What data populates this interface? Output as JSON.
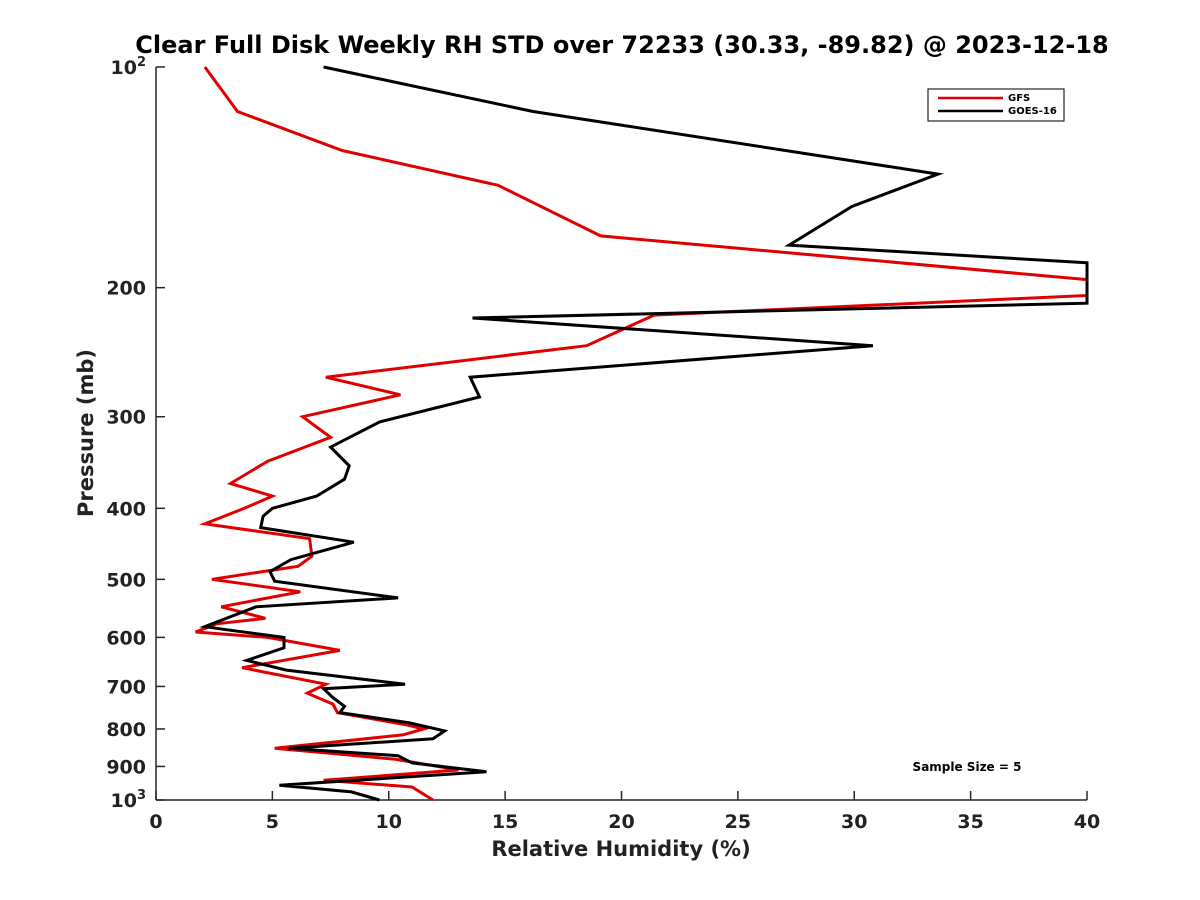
{
  "chart_data": {
    "type": "line",
    "title": "Clear Full Disk Weekly RH STD over 72233 (30.33, -89.82) @ 2023-12-18",
    "xlabel": "Relative Humidity (%)",
    "ylabel": "Pressure (mb)",
    "xlim": [
      0,
      40
    ],
    "ylim": [
      100,
      1000
    ],
    "yscale": "log",
    "y_reversed": true,
    "grid": false,
    "legend_position": "top-right",
    "x_ticks": [
      "0",
      "5",
      "10",
      "15",
      "20",
      "25",
      "30",
      "35",
      "40"
    ],
    "x_tick_values": [
      0,
      5,
      10,
      15,
      20,
      25,
      30,
      35,
      40
    ],
    "y_ticks": [
      {
        "value": 100,
        "base": "10",
        "exp": "2"
      },
      {
        "value": 200,
        "label": "200"
      },
      {
        "value": 300,
        "label": "300"
      },
      {
        "value": 400,
        "label": "400"
      },
      {
        "value": 500,
        "label": "500"
      },
      {
        "value": 600,
        "label": "600"
      },
      {
        "value": 700,
        "label": "700"
      },
      {
        "value": 800,
        "label": "800"
      },
      {
        "value": 900,
        "label": "900"
      },
      {
        "value": 1000,
        "base": "10",
        "exp": "3"
      }
    ],
    "annotation": "Sample Size = 5",
    "series": [
      {
        "name": "GFS",
        "color": "#e00000",
        "points": [
          [
            2.1,
            100
          ],
          [
            3.5,
            115
          ],
          [
            8.0,
            130
          ],
          [
            14.7,
            145
          ],
          [
            19.1,
            170
          ],
          [
            40,
            195
          ],
          [
            40,
            205
          ],
          [
            21.4,
            218
          ],
          [
            18.5,
            240
          ],
          [
            7.3,
            265
          ],
          [
            10.5,
            280
          ],
          [
            6.3,
            300
          ],
          [
            7.5,
            320
          ],
          [
            4.8,
            345
          ],
          [
            3.2,
            370
          ],
          [
            5.0,
            385
          ],
          [
            3.8,
            400
          ],
          [
            2.1,
            420
          ],
          [
            6.6,
            440
          ],
          [
            6.7,
            465
          ],
          [
            6.1,
            480
          ],
          [
            2.4,
            500
          ],
          [
            6.2,
            520
          ],
          [
            2.8,
            545
          ],
          [
            4.7,
            565
          ],
          [
            2.6,
            575
          ],
          [
            1.7,
            590
          ],
          [
            4.8,
            600
          ],
          [
            7.9,
            625
          ],
          [
            3.7,
            660
          ],
          [
            7.3,
            695
          ],
          [
            6.5,
            715
          ],
          [
            7.6,
            740
          ],
          [
            7.8,
            760
          ],
          [
            10.8,
            790
          ],
          [
            11.5,
            800
          ],
          [
            10.6,
            815
          ],
          [
            5.1,
            850
          ],
          [
            10.3,
            880
          ],
          [
            13.0,
            910
          ],
          [
            7.2,
            940
          ],
          [
            11.0,
            960
          ],
          [
            11.9,
            1000
          ]
        ]
      },
      {
        "name": "GOES-16",
        "color": "#000000",
        "points": [
          [
            7.2,
            100
          ],
          [
            16.2,
            115
          ],
          [
            33.6,
            140
          ],
          [
            29.9,
            155
          ],
          [
            27.2,
            175
          ],
          [
            40,
            185
          ],
          [
            40,
            210
          ],
          [
            13.6,
            220
          ],
          [
            30.8,
            240
          ],
          [
            13.5,
            265
          ],
          [
            13.9,
            282
          ],
          [
            9.6,
            305
          ],
          [
            7.5,
            330
          ],
          [
            8.3,
            350
          ],
          [
            8.1,
            365
          ],
          [
            6.9,
            385
          ],
          [
            5.0,
            400
          ],
          [
            4.6,
            410
          ],
          [
            4.5,
            425
          ],
          [
            8.5,
            445
          ],
          [
            5.8,
            470
          ],
          [
            4.9,
            488
          ],
          [
            5.1,
            503
          ],
          [
            10.4,
            530
          ],
          [
            4.3,
            545
          ],
          [
            2.1,
            580
          ],
          [
            2.9,
            585
          ],
          [
            5.5,
            600
          ],
          [
            5.5,
            620
          ],
          [
            3.9,
            645
          ],
          [
            5.6,
            665
          ],
          [
            10.7,
            695
          ],
          [
            7.2,
            705
          ],
          [
            7.6,
            725
          ],
          [
            8.1,
            745
          ],
          [
            7.9,
            760
          ],
          [
            10.9,
            785
          ],
          [
            12.4,
            805
          ],
          [
            11.9,
            825
          ],
          [
            5.7,
            850
          ],
          [
            10.4,
            870
          ],
          [
            11.0,
            890
          ],
          [
            14.2,
            915
          ],
          [
            5.3,
            955
          ],
          [
            8.4,
            975
          ],
          [
            9.6,
            1000
          ]
        ]
      }
    ]
  }
}
